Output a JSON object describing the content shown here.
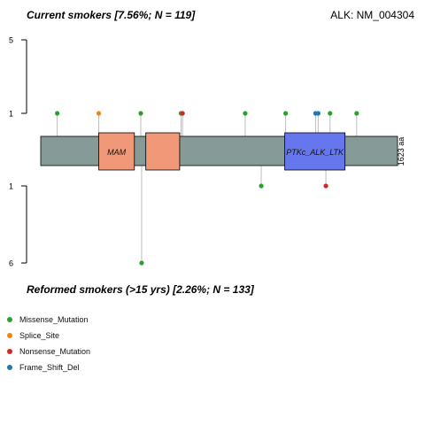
{
  "chart_data": {
    "type": "lollipop",
    "top_title": "Current smokers [7.56%; N = 119]",
    "bottom_title": "Reformed smokers (>15 yrs) [2.26%; N = 133]",
    "gene_label": "ALK: NM_004304",
    "protein_length": 1623,
    "length_label": "1623 aa",
    "top_axis": {
      "ticks": [
        1,
        5
      ]
    },
    "bottom_axis": {
      "ticks": [
        1,
        6
      ]
    },
    "domains": [
      {
        "name": "MAM",
        "start": 264,
        "end": 426,
        "color": "#f09878",
        "label": "MAM"
      },
      {
        "name": "MAM",
        "start": 478,
        "end": 632,
        "color": "#f09878",
        "label": ""
      },
      {
        "name": "PTKc_ALK_LTK / Pkinase_Tyr",
        "start": 1110,
        "end": 1384,
        "color": "#6677ee",
        "label": "PTKc_ALK_LTK"
      }
    ],
    "top_mutations": [
      {
        "pos": 75,
        "count": 1,
        "type": "Missense_Mutation"
      },
      {
        "pos": 264,
        "count": 1,
        "type": "Splice_Site"
      },
      {
        "pos": 455,
        "count": 1,
        "type": "Missense_Mutation"
      },
      {
        "pos": 638,
        "count": 1,
        "type": "Missense_Mutation"
      },
      {
        "pos": 645,
        "count": 1,
        "type": "Nonsense_Mutation"
      },
      {
        "pos": 930,
        "count": 1,
        "type": "Missense_Mutation"
      },
      {
        "pos": 1114,
        "count": 1,
        "type": "Missense_Mutation"
      },
      {
        "pos": 1250,
        "count": 1,
        "type": "Frame_Shift_Del"
      },
      {
        "pos": 1262,
        "count": 1,
        "type": "Frame_Shift_Del"
      },
      {
        "pos": 1316,
        "count": 1,
        "type": "Missense_Mutation"
      },
      {
        "pos": 1437,
        "count": 1,
        "type": "Missense_Mutation"
      }
    ],
    "bottom_mutations": [
      {
        "pos": 459,
        "count": 6,
        "type": "Missense_Mutation"
      },
      {
        "pos": 1003,
        "count": 1,
        "type": "Missense_Mutation"
      },
      {
        "pos": 1297,
        "count": 1,
        "type": "Nonsense_Mutation"
      }
    ],
    "legend": [
      {
        "label": "Missense_Mutation",
        "color": "#2ca02c"
      },
      {
        "label": "Splice_Site",
        "color": "#ff7f0e"
      },
      {
        "label": "Nonsense_Mutation",
        "color": "#d62728"
      },
      {
        "label": "Frame_Shift_Del",
        "color": "#1f77b4"
      }
    ]
  }
}
